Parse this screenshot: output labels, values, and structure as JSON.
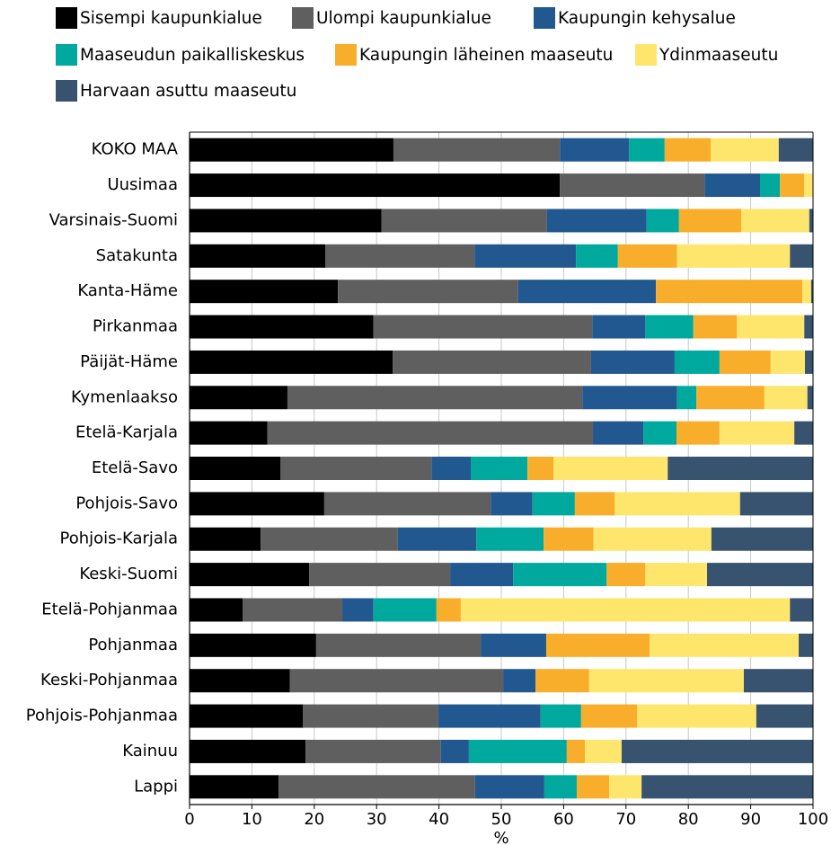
{
  "chart_data": {
    "type": "stacked-bar-horizontal",
    "xlabel": "%",
    "categories": [
      "KOKO MAA",
      "Uusimaa",
      "Varsinais-Suomi",
      "Satakunta",
      "Kanta-Häme",
      "Pirkanmaa",
      "Päijät-Häme",
      "Kymenlaakso",
      "Etelä-Karjala",
      "Etelä-Savo",
      "Pohjois-Savo",
      "Pohjois-Karjala",
      "Keski-Suomi",
      "Etelä-Pohjanmaa",
      "Pohjanmaa",
      "Keski-Pohjanmaa",
      "Pohjois-Pohjanmaa",
      "Kainuu",
      "Lappi"
    ],
    "series": [
      {
        "name": "Sisempi kaupunkialue",
        "color": "#000000",
        "values": [
          32.7,
          59.4,
          30.8,
          21.8,
          23.8,
          29.5,
          32.6,
          15.7,
          12.5,
          14.6,
          21.6,
          11.4,
          19.2,
          8.5,
          20.3,
          16.1,
          18.2,
          18.6,
          14.3
        ]
      },
      {
        "name": "Ulompi kaupunkialue",
        "color": "#5f5f5f",
        "values": [
          26.7,
          23.2,
          26.5,
          23.9,
          28.9,
          35.1,
          31.8,
          47.3,
          52.2,
          24.2,
          26.7,
          22.0,
          22.6,
          16.0,
          26.4,
          34.2,
          21.7,
          21.7,
          31.5
        ]
      },
      {
        "name": "Kaupungin kehysalue",
        "color": "#225890",
        "values": [
          11.1,
          8.9,
          16.0,
          16.3,
          22.1,
          8.5,
          13.4,
          15.2,
          8.1,
          6.3,
          6.7,
          12.6,
          10.1,
          5.0,
          10.5,
          5.2,
          16.4,
          4.5,
          11.1
        ]
      },
      {
        "name": "Maaseudun paikalliskeskus",
        "color": "#00a99d",
        "values": [
          5.7,
          3.2,
          5.2,
          6.7,
          0,
          7.7,
          7.2,
          3.1,
          5.3,
          9.1,
          6.8,
          10.8,
          15.0,
          10.1,
          0,
          0,
          6.5,
          15.7,
          5.2
        ]
      },
      {
        "name": "Kaupungin läheinen maaseutu",
        "color": "#f9ae2b",
        "values": [
          7.4,
          3.9,
          10.0,
          9.5,
          23.5,
          7.0,
          8.2,
          10.9,
          6.9,
          4.2,
          6.4,
          8.0,
          6.2,
          3.9,
          16.6,
          8.6,
          9.0,
          2.9,
          5.2
        ]
      },
      {
        "name": "Ydinmaaseutu",
        "color": "#fde66b",
        "values": [
          10.9,
          1.4,
          10.9,
          18.1,
          1.4,
          10.8,
          5.5,
          6.9,
          12.0,
          18.3,
          20.1,
          18.9,
          9.9,
          52.8,
          23.9,
          24.8,
          19.1,
          5.9,
          5.2
        ]
      },
      {
        "name": "Harvaan asuttu maaseutu",
        "color": "#38536f",
        "values": [
          5.5,
          0,
          0.6,
          3.7,
          0.3,
          1.4,
          1.3,
          0.9,
          3.0,
          23.3,
          11.7,
          16.3,
          17.0,
          3.7,
          2.3,
          11.1,
          9.1,
          30.7,
          27.5
        ]
      }
    ],
    "xlim": [
      0,
      100
    ],
    "xticks": [
      0,
      10,
      20,
      30,
      40,
      50,
      60,
      70,
      80,
      90,
      100
    ],
    "grid": true
  }
}
